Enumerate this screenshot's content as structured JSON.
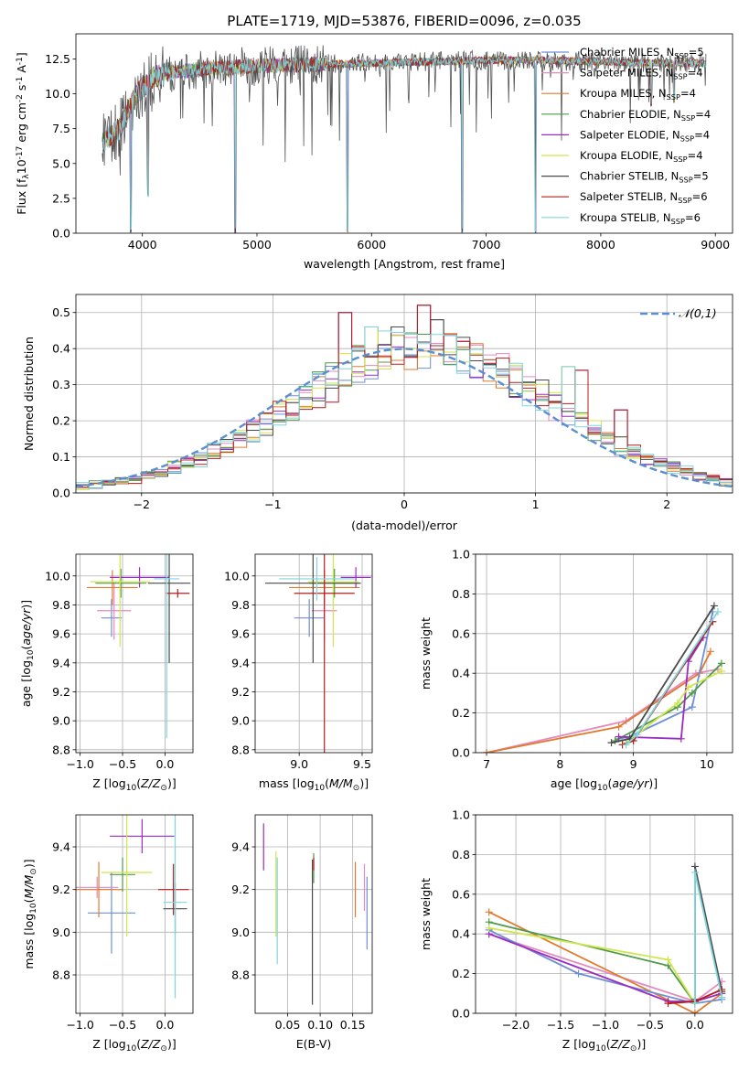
{
  "colors": {
    "chabrier_miles": "#6f8fd6",
    "salpeter_miles": "#e58abf",
    "kroupa_miles": "#e07b2e",
    "chabrier_elodie": "#4f9a48",
    "salpeter_elodie": "#9b2cc0",
    "kroupa_elodie": "#cfe64b",
    "chabrier_stelib": "#4a4a4a",
    "salpeter_stelib": "#b51d1d",
    "kroupa_stelib": "#7fd6dd",
    "grid": "#b0b0b0",
    "gauss": "#5b8fd1"
  },
  "chart_data": [
    {
      "type": "line",
      "title": "PLATE=1719, MJD=53876, FIBERID=0096, z=0.035",
      "xlabel": "wavelength [Angstrom, rest frame]",
      "ylabel": "Flux [f$_\\lambda$10$^{-17}$ erg cm$^{-2}$ s$^{-1}$ A$^{-1}$]",
      "xlim": [
        3420,
        9150
      ],
      "ylim": [
        0,
        14.3
      ],
      "xticks": [
        "4000",
        "5000",
        "6000",
        "7000",
        "8000",
        "9000"
      ],
      "yticks": [
        "0.0",
        "2.5",
        "5.0",
        "7.5",
        "10.0",
        "12.5"
      ],
      "grid": false,
      "legend_position": "upper-right",
      "series": [
        {
          "name": "Chabrier MILES, N$_{SSP}$=5",
          "color_key": "chabrier_miles"
        },
        {
          "name": "Salpeter MILES, N$_{SSP}$=4",
          "color_key": "salpeter_miles"
        },
        {
          "name": "Kroupa MILES, N$_{SSP}$=4",
          "color_key": "kroupa_miles"
        },
        {
          "name": "Chabrier ELODIE, N$_{SSP}$=4",
          "color_key": "chabrier_elodie"
        },
        {
          "name": "Salpeter ELODIE, N$_{SSP}$=4",
          "color_key": "salpeter_elodie"
        },
        {
          "name": "Kroupa ELODIE, N$_{SSP}$=4",
          "color_key": "kroupa_elodie"
        },
        {
          "name": "Chabrier STELIB, N$_{SSP}$=5",
          "color_key": "chabrier_stelib"
        },
        {
          "name": "Salpeter STELIB, N$_{SSP}$=6",
          "color_key": "salpeter_stelib"
        },
        {
          "name": "Kroupa STELIB, N$_{SSP}$=6",
          "color_key": "kroupa_stelib"
        }
      ],
      "continuum": {
        "x": [
          3650,
          3800,
          3950,
          4100,
          4300,
          4600,
          5000,
          5500,
          6000,
          6500,
          7000,
          7500,
          8000,
          8500,
          8900
        ],
        "y": [
          6.5,
          7.5,
          10.0,
          11.2,
          11.6,
          11.8,
          12.0,
          12.1,
          12.2,
          12.3,
          12.4,
          12.4,
          12.3,
          12.2,
          12.2
        ]
      },
      "dips": [
        {
          "x": 3900,
          "y": 0.0
        },
        {
          "x": 4810,
          "y": 0.0
        },
        {
          "x": 5790,
          "y": 0.0
        },
        {
          "x": 6790,
          "y": 0.0
        },
        {
          "x": 7430,
          "y": 0.0
        },
        {
          "x": 4050,
          "y": 2.6
        },
        {
          "x": 8440,
          "y": 9.0
        },
        {
          "x": 8640,
          "y": 9.3
        }
      ]
    },
    {
      "type": "bar",
      "xlabel": "(data-model)/error",
      "ylabel": "Normed distribution",
      "xlim": [
        -2.5,
        2.5
      ],
      "ylim": [
        0,
        0.55
      ],
      "xticks": [
        "−2",
        "−1",
        "0",
        "1",
        "2"
      ],
      "yticks": [
        "0.0",
        "0.1",
        "0.2",
        "0.3",
        "0.4",
        "0.5"
      ],
      "grid": true,
      "legend_position": "upper-right",
      "legend": [
        "$\\mathcal{N}(0,1)$"
      ],
      "bin_width": 0.1,
      "bins_start": -2.5,
      "reference_values": [
        0.018,
        0.022,
        0.026,
        0.032,
        0.04,
        0.048,
        0.058,
        0.07,
        0.083,
        0.097,
        0.114,
        0.132,
        0.151,
        0.171,
        0.194,
        0.217,
        0.241,
        0.264,
        0.288,
        0.311,
        0.333,
        0.352,
        0.368,
        0.381,
        0.391,
        0.397,
        0.399,
        0.397,
        0.391,
        0.381,
        0.368,
        0.352,
        0.333,
        0.311,
        0.288,
        0.264,
        0.241,
        0.217,
        0.194,
        0.171,
        0.151,
        0.132,
        0.114,
        0.097,
        0.083,
        0.07,
        0.058,
        0.048,
        0.04,
        0.032
      ],
      "highlights": [
        {
          "bin": 20,
          "value": 0.5
        },
        {
          "bin": 22,
          "value": 0.46
        },
        {
          "bin": 24,
          "value": 0.46
        },
        {
          "bin": 26,
          "value": 0.52
        },
        {
          "bin": 27,
          "value": 0.48
        },
        {
          "bin": 29,
          "value": 0.42
        },
        {
          "bin": 37,
          "value": 0.35
        },
        {
          "bin": 38,
          "value": 0.34
        },
        {
          "bin": 41,
          "value": 0.23
        }
      ]
    },
    {
      "type": "scatter",
      "xlabel": "Z [log$_{10}$($Z/Z_\\odot$)]",
      "ylabel": "age  [log$_{10}$($age/yr$)]",
      "xlim": [
        -1.05,
        0.33
      ],
      "ylim": [
        8.78,
        10.15
      ],
      "xticks": [
        "−1.0",
        "−0.5",
        "0.0"
      ],
      "yticks": [
        "8.8",
        "9.0",
        "9.2",
        "9.4",
        "9.6",
        "9.8",
        "10.0"
      ],
      "grid": true,
      "points": [
        {
          "x": -0.63,
          "y": 9.71,
          "xerr": 0.12,
          "yerr": 0.13,
          "color_key": "chabrier_miles"
        },
        {
          "x": -0.6,
          "y": 9.76,
          "xerr": 0.2,
          "yerr": 0.2,
          "color_key": "salpeter_miles"
        },
        {
          "x": -0.62,
          "y": 9.92,
          "xerr": 0.3,
          "yerr": 0.12,
          "color_key": "kroupa_miles"
        },
        {
          "x": -0.52,
          "y": 9.95,
          "xerr": 0.3,
          "yerr": 0.1,
          "color_key": "chabrier_elodie"
        },
        {
          "x": -0.3,
          "y": 9.99,
          "xerr": 0.35,
          "yerr": 0.07,
          "color_key": "salpeter_elodie"
        },
        {
          "x": -0.53,
          "y": 9.96,
          "xerr": 0.35,
          "yerr": 0.45,
          "color_key": "kroupa_elodie"
        },
        {
          "x": 0.05,
          "y": 9.95,
          "xerr": 0.25,
          "yerr": 0.55,
          "color_key": "chabrier_stelib"
        },
        {
          "x": 0.15,
          "y": 9.88,
          "xerr": 0.14,
          "yerr": 0.03,
          "color_key": "salpeter_stelib"
        },
        {
          "x": 0.02,
          "y": 9.98,
          "xerr": 0.15,
          "yerr": 1.1,
          "color_key": "kroupa_stelib"
        }
      ]
    },
    {
      "type": "scatter",
      "xlabel": "mass [log$_{10}$($M/M_\\odot$)]",
      "xlim": [
        8.65,
        9.58
      ],
      "ylim": [
        8.78,
        10.15
      ],
      "xticks": [
        "9.0",
        "9.5"
      ],
      "yticks": [
        "8.8",
        "9.0",
        "9.2",
        "9.4",
        "9.6",
        "9.8",
        "10.0"
      ],
      "grid": true,
      "points": [
        {
          "x": 9.08,
          "y": 9.71,
          "xerr": 0.12,
          "yerr": 0.13,
          "color_key": "chabrier_miles"
        },
        {
          "x": 9.2,
          "y": 9.76,
          "xerr": 0.1,
          "yerr": 0.2,
          "color_key": "salpeter_miles"
        },
        {
          "x": 9.2,
          "y": 9.92,
          "xerr": 0.28,
          "yerr": 0.12,
          "color_key": "kroupa_miles"
        },
        {
          "x": 9.28,
          "y": 9.95,
          "xerr": 0.2,
          "yerr": 0.1,
          "color_key": "chabrier_elodie"
        },
        {
          "x": 9.45,
          "y": 9.99,
          "xerr": 0.12,
          "yerr": 0.07,
          "color_key": "salpeter_elodie"
        },
        {
          "x": 9.27,
          "y": 9.96,
          "xerr": 0.2,
          "yerr": 0.45,
          "color_key": "kroupa_elodie"
        },
        {
          "x": 9.11,
          "y": 9.95,
          "xerr": 0.38,
          "yerr": 0.55,
          "color_key": "chabrier_stelib"
        },
        {
          "x": 9.2,
          "y": 9.88,
          "xerr": 0.24,
          "yerr": 1.1,
          "color_key": "salpeter_stelib"
        },
        {
          "x": 9.14,
          "y": 9.98,
          "xerr": 0.3,
          "yerr": 0.15,
          "color_key": "kroupa_stelib"
        }
      ]
    },
    {
      "type": "line",
      "xlabel": "age  [log$_{10}$($age/yr$)]",
      "ylabel": "mass weight",
      "xlim": [
        6.85,
        10.35
      ],
      "ylim": [
        0,
        1.0
      ],
      "xticks": [
        "7",
        "8",
        "9",
        "10"
      ],
      "yticks": [
        "0.0",
        "0.2",
        "0.4",
        "0.6",
        "0.8",
        "1.0"
      ],
      "grid": true,
      "series": [
        {
          "color_key": "salpeter_miles",
          "x": [
            7.0,
            8.9,
            9.85,
            10.15
          ],
          "y": [
            0.0,
            0.16,
            0.4,
            0.42
          ]
        },
        {
          "color_key": "kroupa_miles",
          "x": [
            7.0,
            8.8,
            9.9,
            10.05
          ],
          "y": [
            0.0,
            0.13,
            0.4,
            0.51
          ]
        },
        {
          "color_key": "chabrier_miles",
          "x": [
            8.8,
            8.95,
            9.8,
            10.08
          ],
          "y": [
            0.07,
            0.08,
            0.23,
            0.71
          ]
        },
        {
          "color_key": "chabrier_elodie",
          "x": [
            8.75,
            9.6,
            9.8,
            10.2
          ],
          "y": [
            0.06,
            0.23,
            0.3,
            0.45
          ]
        },
        {
          "color_key": "salpeter_elodie",
          "x": [
            8.8,
            9.65,
            9.75,
            9.95
          ],
          "y": [
            0.08,
            0.07,
            0.46,
            0.58
          ]
        },
        {
          "color_key": "kroupa_elodie",
          "x": [
            8.9,
            9.6,
            9.75,
            10.2
          ],
          "y": [
            0.05,
            0.25,
            0.33,
            0.41
          ]
        },
        {
          "color_key": "chabrier_stelib",
          "x": [
            8.7,
            8.95,
            10.1
          ],
          "y": [
            0.05,
            0.07,
            0.74
          ]
        },
        {
          "color_key": "salpeter_stelib",
          "x": [
            8.85,
            9.0,
            10.08
          ],
          "y": [
            0.04,
            0.06,
            0.66
          ]
        },
        {
          "color_key": "kroupa_stelib",
          "x": [
            8.9,
            9.05,
            10.15
          ],
          "y": [
            0.04,
            0.09,
            0.71
          ]
        }
      ]
    },
    {
      "type": "scatter",
      "xlabel": "Z [log$_{10}$($Z/Z_\\odot$)]",
      "ylabel": "mass [log$_{10}$($M/M_\\odot$)]",
      "xlim": [
        -1.05,
        0.33
      ],
      "ylim": [
        8.62,
        9.55
      ],
      "xticks": [
        "−1.0",
        "−0.5",
        "0.0"
      ],
      "yticks": [
        "8.8",
        "9.0",
        "9.2",
        "9.4"
      ],
      "grid": true,
      "points": [
        {
          "x": -0.63,
          "y": 9.09,
          "xerr": 0.28,
          "yerr": 0.19,
          "color_key": "chabrier_miles"
        },
        {
          "x": -0.8,
          "y": 9.21,
          "xerr": 0.25,
          "yerr": 0.05,
          "color_key": "salpeter_miles"
        },
        {
          "x": -0.78,
          "y": 9.2,
          "xerr": 0.28,
          "yerr": 0.13,
          "color_key": "kroupa_miles"
        },
        {
          "x": -0.5,
          "y": 9.27,
          "xerr": 0.15,
          "yerr": 0.08,
          "color_key": "chabrier_elodie"
        },
        {
          "x": -0.27,
          "y": 9.45,
          "xerr": 0.38,
          "yerr": 0.08,
          "color_key": "salpeter_elodie"
        },
        {
          "x": -0.45,
          "y": 9.28,
          "xerr": 0.3,
          "yerr": 0.3,
          "color_key": "kroupa_elodie"
        },
        {
          "x": 0.12,
          "y": 9.11,
          "xerr": 0.14,
          "yerr": 0.12,
          "color_key": "chabrier_stelib"
        },
        {
          "x": 0.1,
          "y": 9.2,
          "xerr": 0.18,
          "yerr": 0.12,
          "color_key": "salpeter_stelib"
        },
        {
          "x": 0.12,
          "y": 9.14,
          "xerr": 0.14,
          "yerr": 0.45,
          "color_key": "kroupa_stelib"
        }
      ]
    },
    {
      "type": "scatter",
      "xlabel": "E(B-V)",
      "xlim": [
        0.0,
        0.18
      ],
      "ylim": [
        8.62,
        9.55
      ],
      "xticks": [
        "0.05",
        "0.10",
        "0.15"
      ],
      "yticks": [
        "8.8",
        "9.0",
        "9.2",
        "9.4"
      ],
      "grid": true,
      "points": [
        {
          "x": 0.172,
          "y": 9.09,
          "yerr": 0.17,
          "color_key": "chabrier_miles"
        },
        {
          "x": 0.168,
          "y": 9.21,
          "yerr": 0.11,
          "color_key": "salpeter_miles"
        },
        {
          "x": 0.154,
          "y": 9.2,
          "yerr": 0.13,
          "color_key": "kroupa_miles"
        },
        {
          "x": 0.09,
          "y": 9.3,
          "yerr": 0.07,
          "color_key": "chabrier_elodie"
        },
        {
          "x": 0.013,
          "y": 9.4,
          "yerr": 0.11,
          "color_key": "salpeter_elodie"
        },
        {
          "x": 0.032,
          "y": 9.18,
          "yerr": 0.2,
          "color_key": "kroupa_elodie"
        },
        {
          "x": 0.088,
          "y": 9.0,
          "yerr": 0.34,
          "color_key": "chabrier_stelib"
        },
        {
          "x": 0.09,
          "y": 9.32,
          "yerr": 0.03,
          "color_key": "salpeter_stelib"
        },
        {
          "x": 0.034,
          "y": 9.1,
          "yerr": 0.25,
          "color_key": "kroupa_stelib"
        }
      ]
    },
    {
      "type": "line",
      "xlabel": "Z [log$_{10}$($Z/Z_\\odot$)]",
      "ylabel": "mass weight",
      "xlim": [
        -2.45,
        0.42
      ],
      "ylim": [
        0,
        1.0
      ],
      "xticks": [
        "−2.0",
        "−1.5",
        "−1.0",
        "−0.5",
        "0.0"
      ],
      "yticks": [
        "0.0",
        "0.2",
        "0.4",
        "0.6",
        "0.8",
        "1.0"
      ],
      "grid": true,
      "series": [
        {
          "color_key": "salpeter_miles",
          "x": [
            -2.3,
            0.0,
            0.3
          ],
          "y": [
            0.4,
            0.06,
            0.16
          ]
        },
        {
          "color_key": "kroupa_miles",
          "x": [
            -2.3,
            0.0,
            0.3
          ],
          "y": [
            0.51,
            0.0,
            0.1
          ]
        },
        {
          "color_key": "chabrier_miles",
          "x": [
            -2.3,
            -1.3,
            0.0,
            0.3
          ],
          "y": [
            0.42,
            0.2,
            0.05,
            0.07
          ]
        },
        {
          "color_key": "chabrier_elodie",
          "x": [
            -2.3,
            -0.3,
            0.0
          ],
          "y": [
            0.46,
            0.24,
            0.05
          ]
        },
        {
          "color_key": "salpeter_elodie",
          "x": [
            -2.3,
            -0.3,
            0.0,
            0.3
          ],
          "y": [
            0.4,
            0.06,
            0.06,
            0.1
          ]
        },
        {
          "color_key": "kroupa_elodie",
          "x": [
            -2.3,
            -0.3,
            0.0
          ],
          "y": [
            0.43,
            0.27,
            0.05
          ]
        },
        {
          "color_key": "chabrier_stelib",
          "x": [
            0.0,
            0.0,
            0.3
          ],
          "y": [
            0.07,
            0.74,
            0.11
          ]
        },
        {
          "color_key": "salpeter_stelib",
          "x": [
            -0.3,
            0.0,
            0.3
          ],
          "y": [
            0.05,
            0.06,
            0.12
          ]
        },
        {
          "color_key": "kroupa_stelib",
          "x": [
            0.0,
            0.0,
            0.3
          ],
          "y": [
            0.05,
            0.71,
            0.08
          ]
        }
      ]
    }
  ]
}
